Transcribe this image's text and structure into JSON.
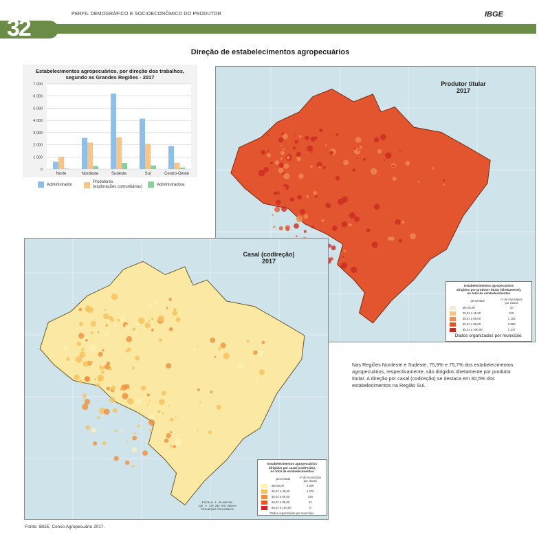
{
  "header": {
    "running_head": "PERFIL DEMOGRÁFICO E SOCIOECONÔMICO DO PRODUTOR",
    "logo": "IBGE",
    "page_number": "32",
    "accent": "#6b8c47"
  },
  "title": "Direção de estabelecimentos agropecuários",
  "chart_data": {
    "type": "bar",
    "title": "Estabelecimentos agropecuários, por direção dos trabalhos, segundo as Grandes Regiões - 2017",
    "title_lines": [
      "Estabelecimentos agropecuários, por direção dos trabalhos,",
      "segundo as Grandes Regiões - 2017"
    ],
    "categories": [
      "Norte",
      "Nordeste",
      "Sudeste",
      "Sul",
      "Centro-Oeste"
    ],
    "ylim": [
      0,
      7000
    ],
    "yticks": [
      "0",
      "1 000",
      "2 000",
      "3 000",
      "4 000",
      "5 000",
      "6 000",
      "7 000"
    ],
    "grid": true,
    "legend_position": "bottom",
    "series": [
      {
        "name": "Administrador",
        "color": "#8fbfe6",
        "values": [
          600,
          2560,
          6200,
          4150,
          1900
        ]
      },
      {
        "name": "Produtores (explorações comunitárias)",
        "name_lines": [
          "Produtores",
          "(explorações comunitárias)"
        ],
        "color": "#f8c48a",
        "values": [
          980,
          2180,
          2620,
          2080,
          520
        ]
      },
      {
        "name": "Administradora",
        "color": "#8ccf9f",
        "values": [
          40,
          260,
          510,
          300,
          130
        ]
      }
    ]
  },
  "map_titular": {
    "title_lines": [
      "Produtor titular",
      "2017"
    ],
    "fill": "#e2552e",
    "legend": {
      "title_lines": [
        "Estabelecimentos agropecuários",
        "dirigidos por produtor titular (diretamente),",
        "no total de estabelecimentos"
      ],
      "col1": "percentual",
      "col2_lines": [
        "nº de municípios",
        "por classe"
      ],
      "classes": [
        {
          "label": "até 25,00",
          "count": "10",
          "color": "#fbe9d2"
        },
        {
          "label": "25,01 a 45,00",
          "count": "245",
          "color": "#f9c27f"
        },
        {
          "label": "45,01 a 65,00",
          "count": "1 103",
          "color": "#f08a55"
        },
        {
          "label": "65,01 a 85,00",
          "count": "2 966",
          "color": "#e4572d"
        },
        {
          "label": "85,01 a 100,00",
          "count": "1 247",
          "color": "#cc2a21"
        }
      ],
      "note": "Dados organizados por município."
    }
  },
  "map_casal": {
    "title_lines": [
      "Casal (codireção)",
      "2017"
    ],
    "fill": "#fbe9a3",
    "legend": {
      "title_lines": [
        "Estabelecimentos agropecuários",
        "dirigidos por casal (codireção),",
        "no total de estabelecimentos"
      ],
      "col1": "percentual",
      "col2_lines": [
        "nº de municípios",
        "por classe"
      ],
      "classes": [
        {
          "label": "até 25,00",
          "count": "4 000",
          "color": "#fcf1b3"
        },
        {
          "label": "25,01 a 45,00",
          "count": "1 076",
          "color": "#f6c15b"
        },
        {
          "label": "45,01 a 65,00",
          "count": "316",
          "color": "#ef8f3a"
        },
        {
          "label": "65,01 a 85,00",
          "count": "41",
          "color": "#e55526"
        },
        {
          "label": "85,01 a 100,00",
          "count": "0",
          "color": "#d81f26"
        }
      ],
      "note": "Dados organizados por município."
    },
    "scale": {
      "label": "ESCALA : 1 : 25 000 000",
      "ticks": "125   0   125  250  375  500 km",
      "projection": "PROJEÇÃO POLICÔNICA"
    }
  },
  "paragraph": "Nas Regiões Nordeste e Sudeste, 75,9% e 75,7% dos estabelecimentos agropecuários, respectivamente, são dirigidos diretamente por produtor titular. A direção por casal (codireção) se destaca em 30,5% dos estabelecimentos na Região Sul.",
  "source": "Fonte: IBGE, Censo Agropecuário 2017."
}
